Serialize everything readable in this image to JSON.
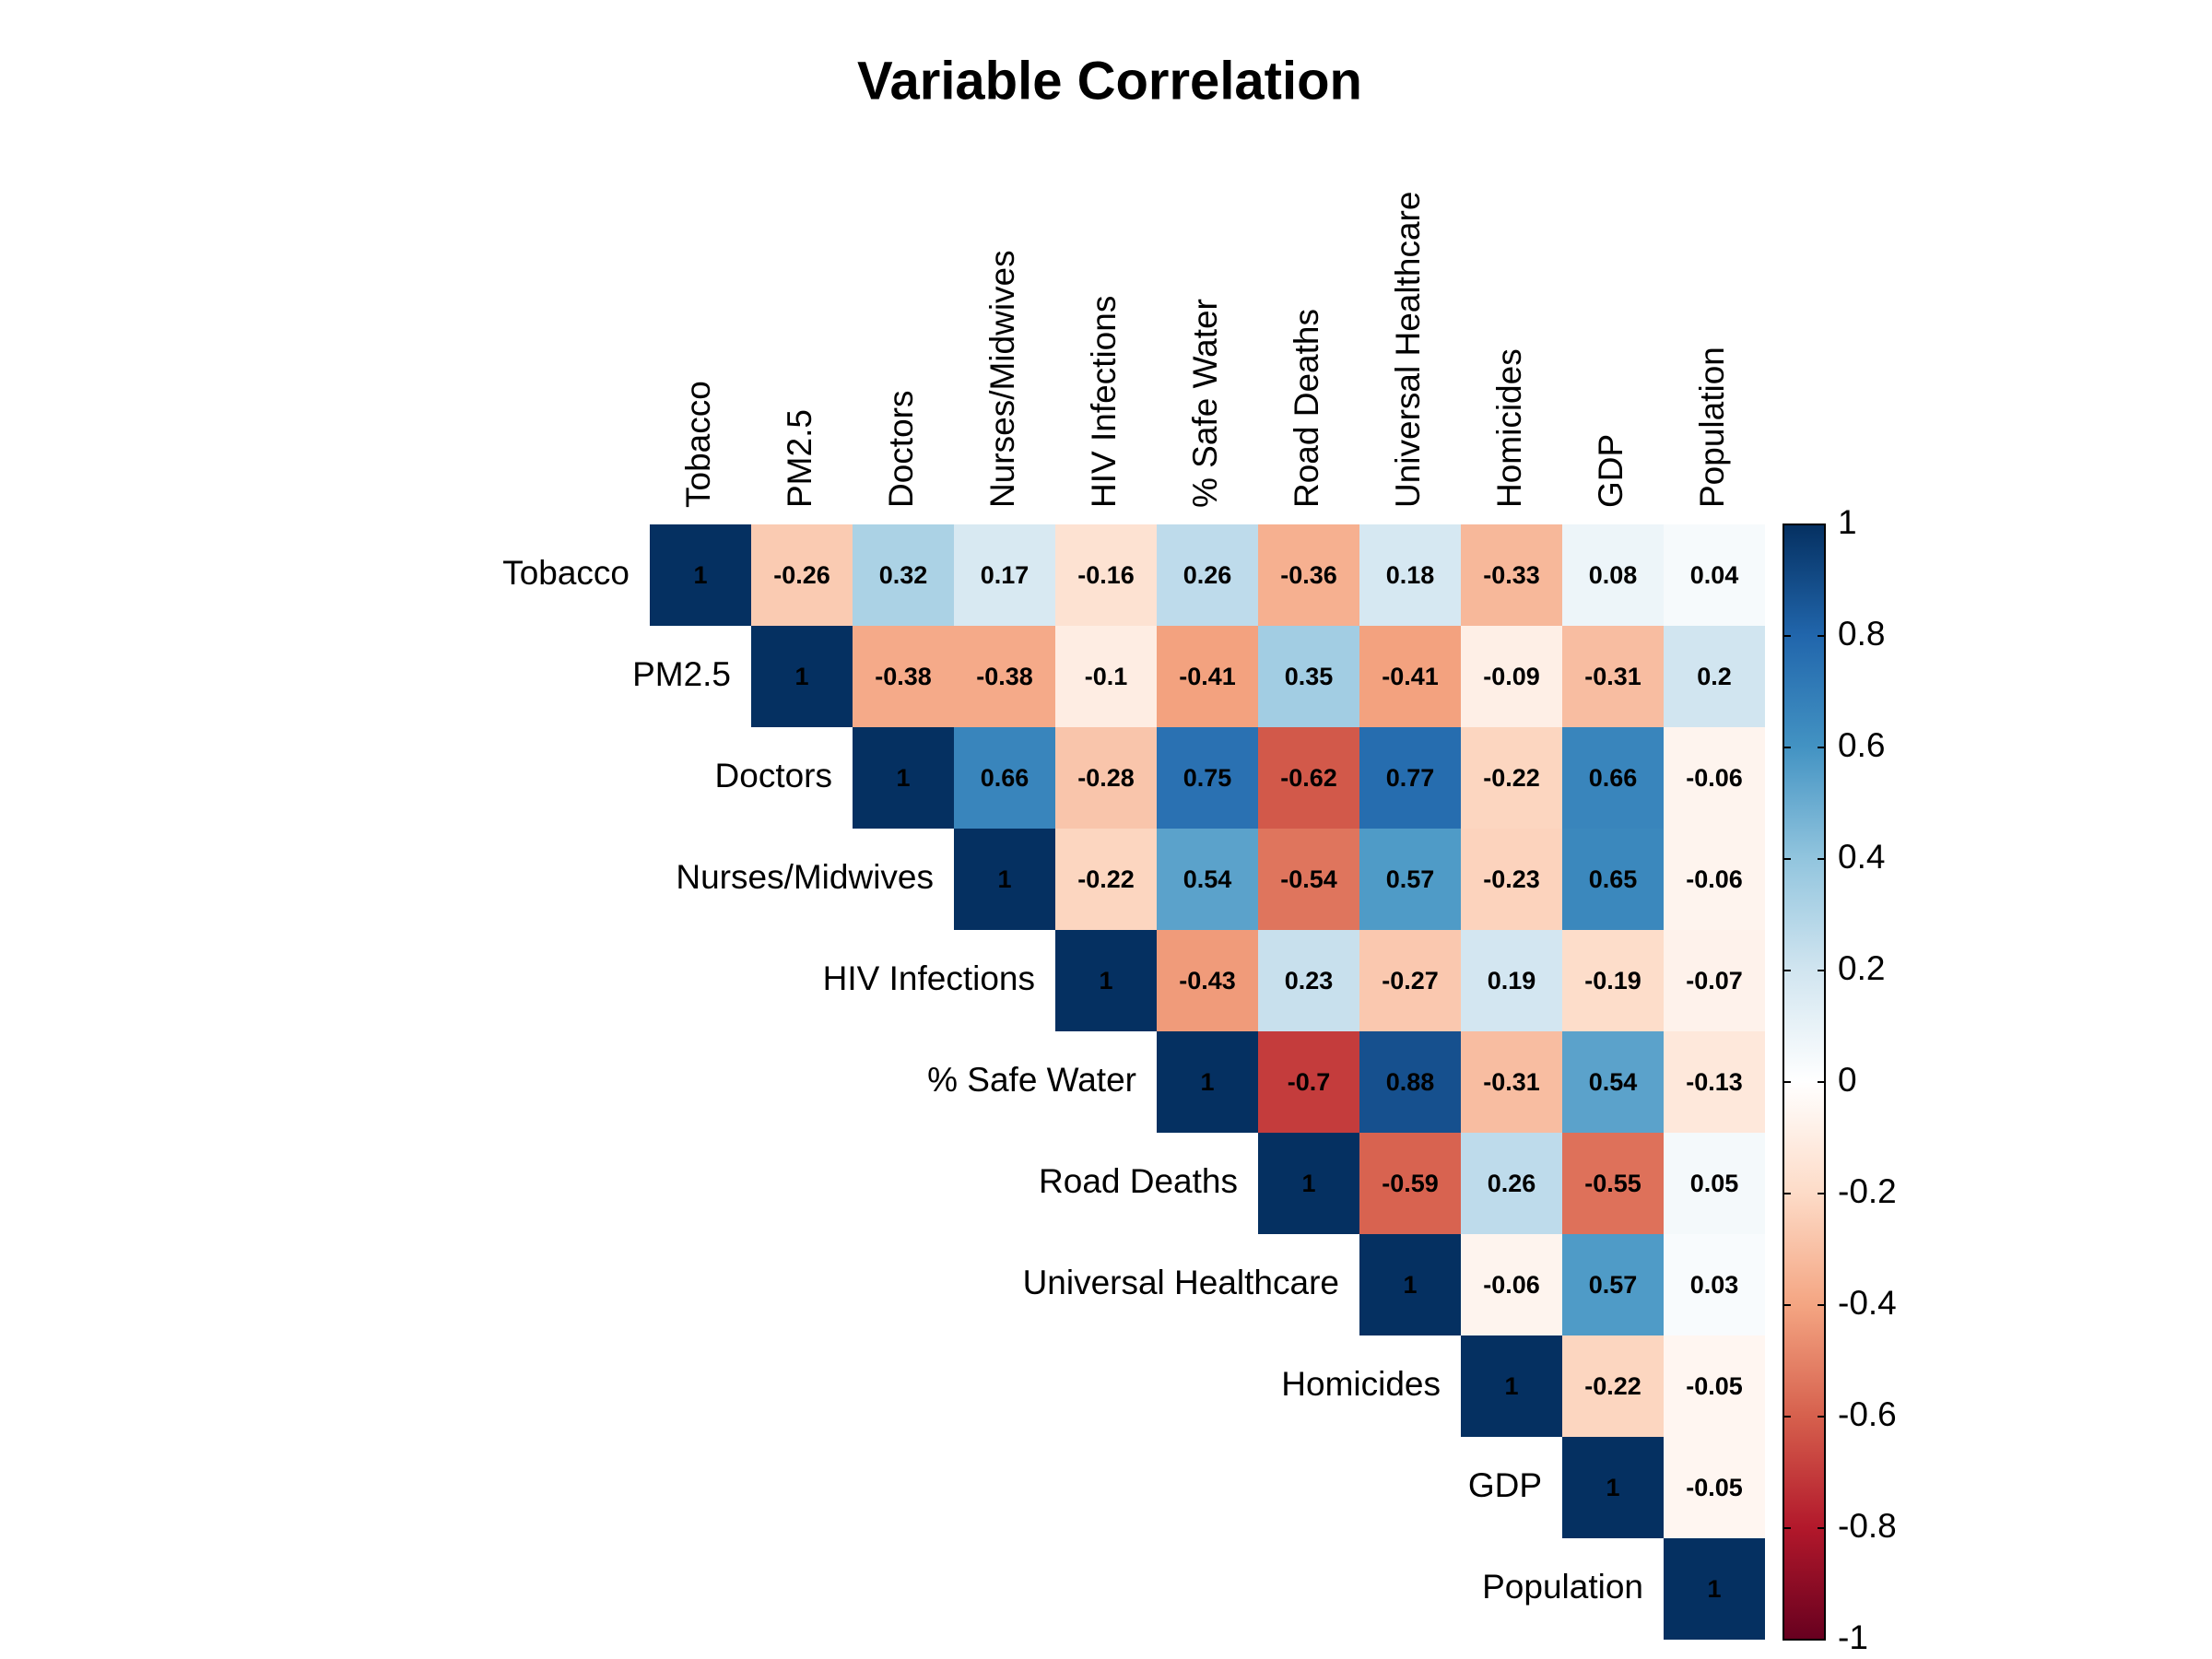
{
  "chart_data": {
    "type": "heatmap",
    "title": "Variable Correlation",
    "categories": [
      "Tobacco",
      "PM2.5",
      "Doctors",
      "Nurses/Midwives",
      "HIV Infections",
      "% Safe Water",
      "Road Deaths",
      "Universal Healthcare",
      "Homicides",
      "GDP",
      "Population"
    ],
    "values": [
      [
        1,
        -0.26,
        0.32,
        0.17,
        -0.16,
        0.26,
        -0.36,
        0.18,
        -0.33,
        0.08,
        0.04
      ],
      [
        null,
        1,
        -0.38,
        -0.38,
        -0.1,
        -0.41,
        0.35,
        -0.41,
        -0.09,
        -0.31,
        0.2
      ],
      [
        null,
        null,
        1,
        0.66,
        -0.28,
        0.75,
        -0.62,
        0.77,
        -0.22,
        0.66,
        -0.06
      ],
      [
        null,
        null,
        null,
        1,
        -0.22,
        0.54,
        -0.54,
        0.57,
        -0.23,
        0.65,
        -0.06
      ],
      [
        null,
        null,
        null,
        null,
        1,
        -0.43,
        0.23,
        -0.27,
        0.19,
        -0.19,
        -0.07
      ],
      [
        null,
        null,
        null,
        null,
        null,
        1,
        -0.7,
        0.88,
        -0.31,
        0.54,
        -0.13
      ],
      [
        null,
        null,
        null,
        null,
        null,
        null,
        1,
        -0.59,
        0.26,
        -0.55,
        0.05
      ],
      [
        null,
        null,
        null,
        null,
        null,
        null,
        null,
        1,
        -0.06,
        0.57,
        0.03
      ],
      [
        null,
        null,
        null,
        null,
        null,
        null,
        null,
        null,
        1,
        -0.22,
        -0.05
      ],
      [
        null,
        null,
        null,
        null,
        null,
        null,
        null,
        null,
        null,
        1,
        -0.05
      ],
      [
        null,
        null,
        null,
        null,
        null,
        null,
        null,
        null,
        null,
        null,
        1
      ]
    ],
    "colorscale": [
      "#67001F",
      "#B2182B",
      "#D6604D",
      "#F4A582",
      "#FDDBC7",
      "#FFFFFF",
      "#D1E5F0",
      "#92C5DE",
      "#4393C3",
      "#2166AC",
      "#053061"
    ],
    "zlim": [
      -1,
      1
    ],
    "zticks": [
      1,
      0.8,
      0.6,
      0.4,
      0.2,
      0,
      -0.2,
      -0.4,
      -0.6,
      -0.8,
      -1
    ]
  }
}
